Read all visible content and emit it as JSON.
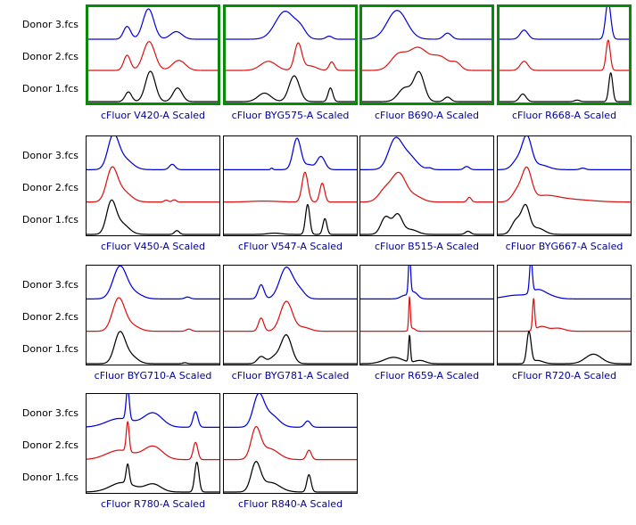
{
  "window": {
    "background": "#ffffff"
  },
  "row_labels": [
    "Donor 3.fcs",
    "Donor 2.fcs",
    "Donor 1.fcs"
  ],
  "colors": {
    "donor3_trace": "#0000dd",
    "donor2_trace": "#dd1111",
    "donor1_trace": "#000000",
    "selected_border": "#088a08",
    "frame_border": "#000000",
    "title_text": "#000099",
    "label_text": "#000000"
  },
  "chart_data": {
    "type": "histogram-overlay-grid",
    "donors": [
      "Donor 3.fcs",
      "Donor 2.fcs",
      "Donor 1.fcs"
    ],
    "note_peaks_format": "peaks are [center_fraction_of_x_axis, width_sigma, relative_height]",
    "plots": [
      {
        "title": "cFluor V420-A Scaled",
        "selected": true,
        "series": [
          {
            "donor": "Donor 3.fcs",
            "peaks": [
              [
                0.3,
                0.028,
                0.42
              ],
              [
                0.465,
                0.042,
                1.0
              ],
              [
                0.68,
                0.045,
                0.25
              ]
            ]
          },
          {
            "donor": "Donor 2.fcs",
            "peaks": [
              [
                0.3,
                0.026,
                0.5
              ],
              [
                0.47,
                0.045,
                0.95
              ],
              [
                0.7,
                0.05,
                0.33
              ]
            ]
          },
          {
            "donor": "Donor 1.fcs",
            "peaks": [
              [
                0.31,
                0.025,
                0.32
              ],
              [
                0.48,
                0.038,
                1.0
              ],
              [
                0.69,
                0.035,
                0.45
              ]
            ]
          }
        ]
      },
      {
        "title": "cFluor BYG575-A Scaled",
        "selected": true,
        "series": [
          {
            "donor": "Donor 3.fcs",
            "peaks": [
              [
                0.46,
                0.075,
                0.92
              ],
              [
                0.58,
                0.04,
                0.25
              ],
              [
                0.8,
                0.025,
                0.1
              ]
            ]
          },
          {
            "donor": "Donor 2.fcs",
            "peaks": [
              [
                0.33,
                0.06,
                0.3
              ],
              [
                0.56,
                0.028,
                0.88
              ],
              [
                0.65,
                0.05,
                0.15
              ],
              [
                0.82,
                0.02,
                0.28
              ]
            ]
          },
          {
            "donor": "Donor 1.fcs",
            "peaks": [
              [
                0.3,
                0.05,
                0.28
              ],
              [
                0.53,
                0.04,
                0.85
              ],
              [
                0.81,
                0.018,
                0.45
              ]
            ]
          }
        ]
      },
      {
        "title": "cFluor B690-A Scaled",
        "selected": true,
        "series": [
          {
            "donor": "Donor 3.fcs",
            "peaks": [
              [
                0.27,
                0.075,
                0.95
              ],
              [
                0.66,
                0.03,
                0.2
              ]
            ]
          },
          {
            "donor": "Donor 2.fcs",
            "peaks": [
              [
                0.28,
                0.06,
                0.5
              ],
              [
                0.43,
                0.07,
                0.72
              ],
              [
                0.6,
                0.07,
                0.45
              ],
              [
                0.73,
                0.035,
                0.2
              ]
            ]
          },
          {
            "donor": "Donor 1.fcs",
            "peaks": [
              [
                0.33,
                0.05,
                0.45
              ],
              [
                0.44,
                0.04,
                0.95
              ],
              [
                0.66,
                0.025,
                0.15
              ]
            ]
          }
        ]
      },
      {
        "title": "cFluor R668-A Scaled",
        "selected": true,
        "series": [
          {
            "donor": "Donor 3.fcs",
            "peaks": [
              [
                0.19,
                0.03,
                0.3
              ],
              [
                0.84,
                0.02,
                1.25
              ]
            ]
          },
          {
            "donor": "Donor 2.fcs",
            "peaks": [
              [
                0.19,
                0.03,
                0.3
              ],
              [
                0.84,
                0.016,
                1.0
              ]
            ]
          },
          {
            "donor": "Donor 1.fcs",
            "peaks": [
              [
                0.18,
                0.025,
                0.25
              ],
              [
                0.6,
                0.02,
                0.05
              ],
              [
                0.86,
                0.015,
                0.95
              ]
            ]
          }
        ]
      },
      {
        "title": "cFluor V450-A Scaled",
        "selected": false,
        "series": [
          {
            "donor": "Donor 3.fcs",
            "peaks": [
              [
                0.2,
                0.04,
                1.0
              ],
              [
                0.28,
                0.06,
                0.35
              ],
              [
                0.645,
                0.022,
                0.17
              ]
            ]
          },
          {
            "donor": "Donor 2.fcs",
            "peaks": [
              [
                0.19,
                0.04,
                0.97
              ],
              [
                0.27,
                0.06,
                0.35
              ],
              [
                0.6,
                0.015,
                0.06
              ],
              [
                0.66,
                0.015,
                0.07
              ]
            ]
          },
          {
            "donor": "Donor 1.fcs",
            "peaks": [
              [
                0.185,
                0.035,
                0.95
              ],
              [
                0.26,
                0.055,
                0.35
              ],
              [
                0.68,
                0.018,
                0.12
              ]
            ]
          }
        ]
      },
      {
        "title": "cFluor V547-A Scaled",
        "selected": false,
        "series": [
          {
            "donor": "Donor 3.fcs",
            "peaks": [
              [
                0.36,
                0.008,
                0.05
              ],
              [
                0.55,
                0.03,
                1.0
              ],
              [
                0.64,
                0.03,
                0.15
              ],
              [
                0.73,
                0.03,
                0.42
              ]
            ]
          },
          {
            "donor": "Donor 2.fcs",
            "peaks": [
              [
                0.3,
                0.1,
                0.03
              ],
              [
                0.61,
                0.022,
                0.95
              ],
              [
                0.74,
                0.018,
                0.6
              ]
            ]
          },
          {
            "donor": "Donor 1.fcs",
            "peaks": [
              [
                0.38,
                0.05,
                0.04
              ],
              [
                0.63,
                0.016,
                0.95
              ],
              [
                0.76,
                0.015,
                0.5
              ]
            ]
          }
        ]
      },
      {
        "title": "cFluor B515-A Scaled",
        "selected": false,
        "series": [
          {
            "donor": "Donor 3.fcs",
            "peaks": [
              [
                0.26,
                0.05,
                0.9
              ],
              [
                0.36,
                0.06,
                0.45
              ],
              [
                0.52,
                0.02,
                0.05
              ],
              [
                0.8,
                0.02,
                0.1
              ]
            ]
          },
          {
            "donor": "Donor 2.fcs",
            "peaks": [
              [
                0.19,
                0.05,
                0.4
              ],
              [
                0.29,
                0.05,
                0.85
              ],
              [
                0.4,
                0.06,
                0.2
              ],
              [
                0.82,
                0.015,
                0.15
              ]
            ]
          },
          {
            "donor": "Donor 1.fcs",
            "peaks": [
              [
                0.19,
                0.035,
                0.55
              ],
              [
                0.28,
                0.035,
                0.62
              ],
              [
                0.38,
                0.05,
                0.15
              ],
              [
                0.81,
                0.02,
                0.1
              ]
            ]
          }
        ]
      },
      {
        "title": "cFluor BYG667-A Scaled",
        "selected": false,
        "series": [
          {
            "donor": "Donor 3.fcs",
            "peaks": [
              [
                0.15,
                0.04,
                0.3
              ],
              [
                0.22,
                0.035,
                1.0
              ],
              [
                0.32,
                0.06,
                0.15
              ],
              [
                0.64,
                0.02,
                0.05
              ]
            ]
          },
          {
            "donor": "Donor 2.fcs",
            "peaks": [
              [
                0.15,
                0.04,
                0.35
              ],
              [
                0.22,
                0.035,
                0.95
              ],
              [
                0.35,
                0.1,
                0.18
              ],
              [
                0.55,
                0.15,
                0.08
              ]
            ]
          },
          {
            "donor": "Donor 1.fcs",
            "peaks": [
              [
                0.14,
                0.035,
                0.45
              ],
              [
                0.21,
                0.03,
                0.85
              ],
              [
                0.3,
                0.05,
                0.2
              ]
            ]
          }
        ]
      },
      {
        "title": "cFluor BYG710-A Scaled",
        "selected": false,
        "series": [
          {
            "donor": "Donor 3.fcs",
            "peaks": [
              [
                0.25,
                0.05,
                1.0
              ],
              [
                0.35,
                0.06,
                0.2
              ],
              [
                0.76,
                0.02,
                0.06
              ]
            ]
          },
          {
            "donor": "Donor 2.fcs",
            "peaks": [
              [
                0.24,
                0.045,
                1.0
              ],
              [
                0.33,
                0.06,
                0.2
              ],
              [
                0.77,
                0.02,
                0.07
              ]
            ]
          },
          {
            "donor": "Donor 1.fcs",
            "peaks": [
              [
                0.25,
                0.04,
                0.95
              ],
              [
                0.33,
                0.05,
                0.25
              ],
              [
                0.74,
                0.015,
                0.03
              ]
            ]
          }
        ]
      },
      {
        "title": "cFluor BYG781-A Scaled",
        "selected": false,
        "series": [
          {
            "donor": "Donor 3.fcs",
            "peaks": [
              [
                0.28,
                0.022,
                0.45
              ],
              [
                0.47,
                0.05,
                1.0
              ],
              [
                0.57,
                0.04,
                0.25
              ]
            ]
          },
          {
            "donor": "Donor 2.fcs",
            "peaks": [
              [
                0.28,
                0.02,
                0.42
              ],
              [
                0.47,
                0.045,
                0.95
              ],
              [
                0.6,
                0.05,
                0.12
              ]
            ]
          },
          {
            "donor": "Donor 1.fcs",
            "peaks": [
              [
                0.28,
                0.028,
                0.22
              ],
              [
                0.38,
                0.04,
                0.2
              ],
              [
                0.47,
                0.04,
                0.9
              ]
            ]
          }
        ]
      },
      {
        "title": "cFluor R659-A Scaled",
        "selected": false,
        "series": [
          {
            "donor": "Donor 3.fcs",
            "peaks": [
              [
                0.33,
                0.03,
                0.1
              ],
              [
                0.37,
                0.008,
                1.3
              ],
              [
                0.4,
                0.03,
                0.22
              ]
            ]
          },
          {
            "donor": "Donor 2.fcs",
            "peaks": [
              [
                0.37,
                0.006,
                1.05
              ],
              [
                0.39,
                0.02,
                0.1
              ]
            ]
          },
          {
            "donor": "Donor 1.fcs",
            "peaks": [
              [
                0.25,
                0.07,
                0.2
              ],
              [
                0.37,
                0.007,
                0.85
              ],
              [
                0.45,
                0.04,
                0.1
              ]
            ]
          }
        ]
      },
      {
        "title": "cFluor R720-A Scaled",
        "selected": false,
        "series": [
          {
            "donor": "Donor 3.fcs",
            "peaks": [
              [
                0.15,
                0.1,
                0.12
              ],
              [
                0.25,
                0.01,
                1.1
              ],
              [
                0.3,
                0.05,
                0.22
              ],
              [
                0.38,
                0.06,
                0.1
              ]
            ]
          },
          {
            "donor": "Donor 2.fcs",
            "peaks": [
              [
                0.27,
                0.008,
                1.0
              ],
              [
                0.33,
                0.04,
                0.15
              ],
              [
                0.45,
                0.05,
                0.1
              ]
            ]
          },
          {
            "donor": "Donor 1.fcs",
            "peaks": [
              [
                0.235,
                0.016,
                1.0
              ],
              [
                0.3,
                0.04,
                0.1
              ],
              [
                0.72,
                0.06,
                0.3
              ]
            ]
          }
        ]
      },
      {
        "title": "cFluor R780-A Scaled",
        "selected": false,
        "series": [
          {
            "donor": "Donor 3.fcs",
            "peaks": [
              [
                0.25,
                0.1,
                0.28
              ],
              [
                0.31,
                0.012,
                1.0
              ],
              [
                0.5,
                0.07,
                0.45
              ],
              [
                0.82,
                0.018,
                0.5
              ]
            ]
          },
          {
            "donor": "Donor 2.fcs",
            "peaks": [
              [
                0.25,
                0.1,
                0.3
              ],
              [
                0.31,
                0.011,
                0.95
              ],
              [
                0.5,
                0.07,
                0.42
              ],
              [
                0.82,
                0.017,
                0.55
              ]
            ]
          },
          {
            "donor": "Donor 1.fcs",
            "peaks": [
              [
                0.27,
                0.09,
                0.3
              ],
              [
                0.31,
                0.012,
                0.62
              ],
              [
                0.5,
                0.06,
                0.25
              ],
              [
                0.83,
                0.016,
                0.95
              ]
            ]
          }
        ]
      },
      {
        "title": "cFluor R840-A Scaled",
        "selected": false,
        "series": [
          {
            "donor": "Donor 3.fcs",
            "peaks": [
              [
                0.26,
                0.04,
                0.95
              ],
              [
                0.35,
                0.06,
                0.4
              ],
              [
                0.63,
                0.022,
                0.2
              ]
            ]
          },
          {
            "donor": "Donor 2.fcs",
            "peaks": [
              [
                0.24,
                0.035,
                0.92
              ],
              [
                0.34,
                0.07,
                0.35
              ],
              [
                0.64,
                0.018,
                0.3
              ]
            ]
          },
          {
            "donor": "Donor 1.fcs",
            "peaks": [
              [
                0.24,
                0.035,
                0.88
              ],
              [
                0.35,
                0.07,
                0.3
              ],
              [
                0.64,
                0.016,
                0.55
              ]
            ]
          }
        ]
      }
    ]
  }
}
